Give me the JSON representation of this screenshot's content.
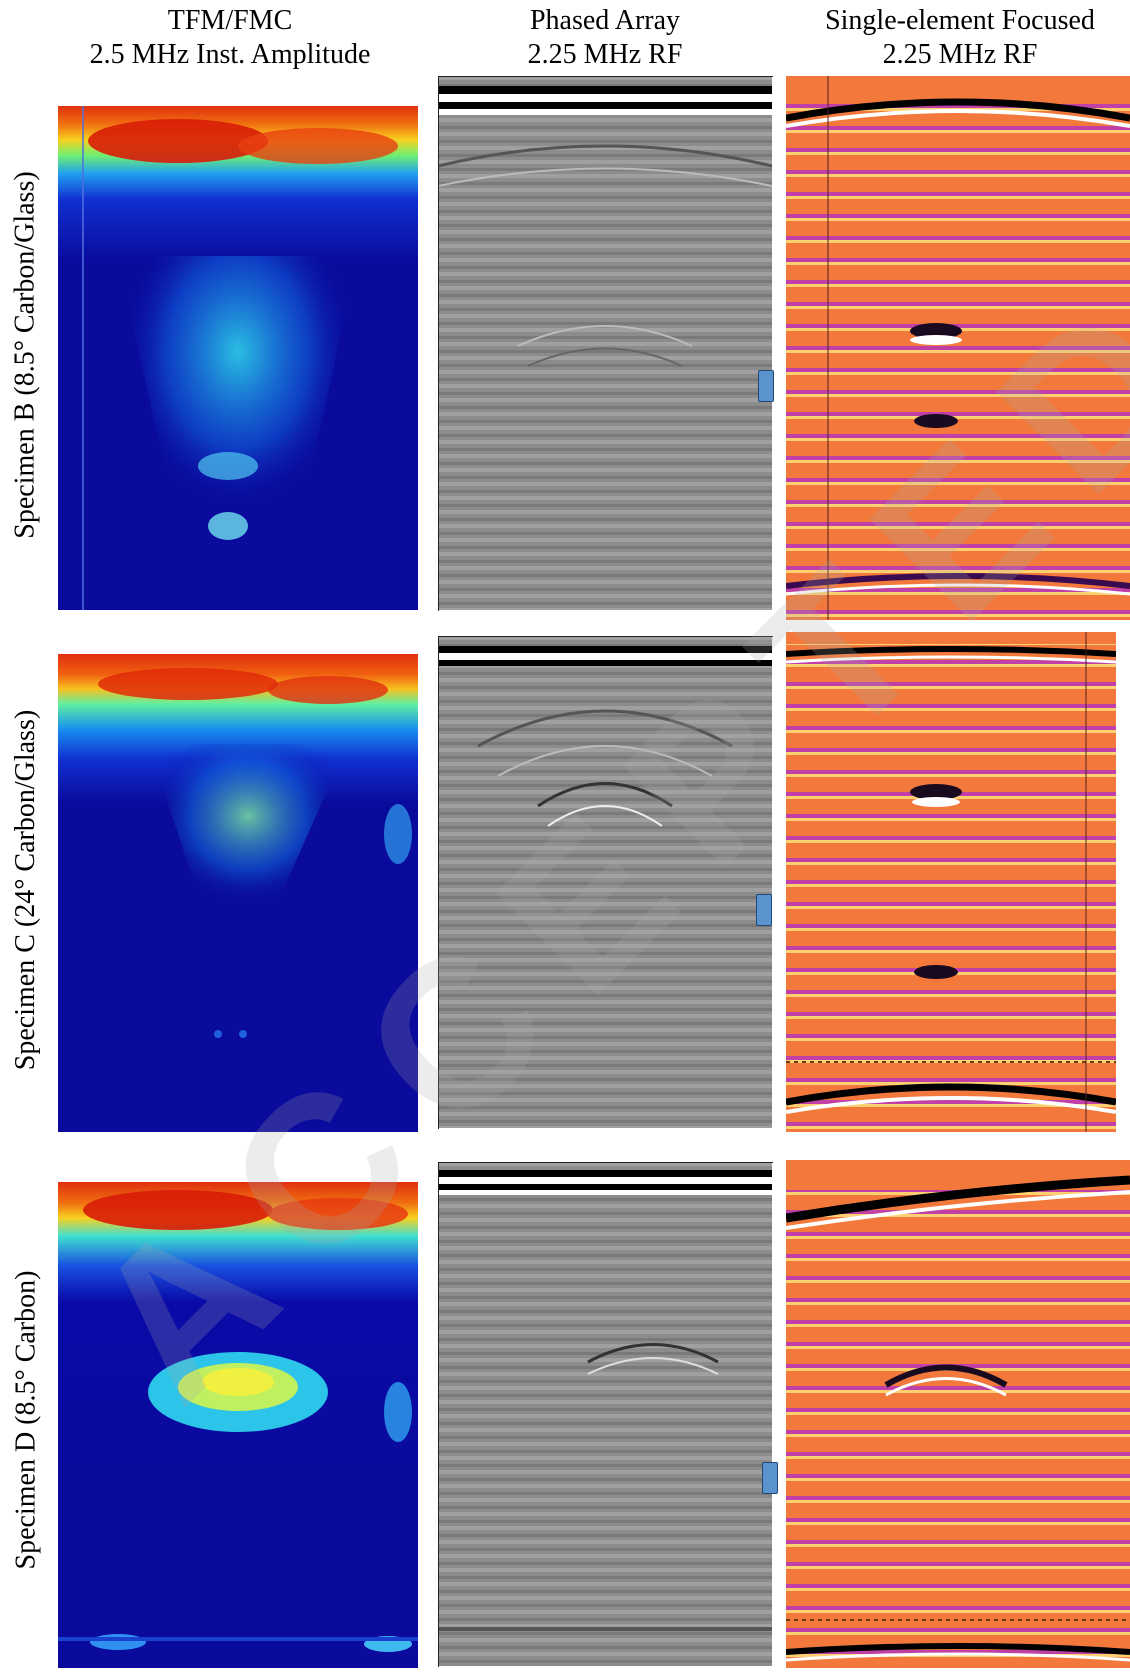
{
  "columns": [
    {
      "line1": "TFM/FMC",
      "line2": "2.5 MHz Inst. Amplitude"
    },
    {
      "line1": "Phased Array",
      "line2": "2.25 MHz RF"
    },
    {
      "line1": "Single-element Focused",
      "line2": "2.25 MHz RF"
    }
  ],
  "rows": [
    {
      "label": "Specimen B (8.5° Carbon/Glass)"
    },
    {
      "label": "Specimen C (24° Carbon/Glass)"
    },
    {
      "label": "Specimen D (8.5° Carbon)"
    }
  ],
  "watermark": "ACCEPTED",
  "colors": {
    "tfm_background": "#0a0a9c",
    "tfm_hot": "#e8300a",
    "pa_background": "#8c8c8c",
    "se_background": "#f2793b",
    "se_band": "#c040a8",
    "marker": "#5a94cf"
  }
}
